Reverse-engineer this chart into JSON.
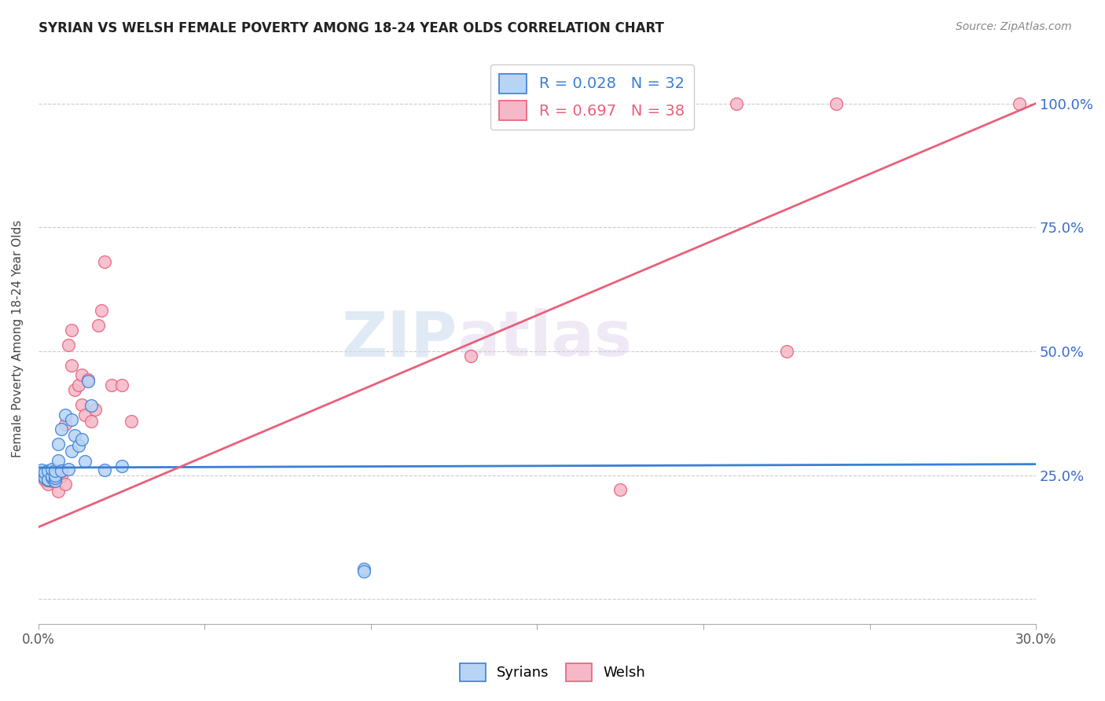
{
  "title": "SYRIAN VS WELSH FEMALE POVERTY AMONG 18-24 YEAR OLDS CORRELATION CHART",
  "source": "Source: ZipAtlas.com",
  "ylabel": "Female Poverty Among 18-24 Year Olds",
  "y_ticks": [
    0.0,
    0.25,
    0.5,
    0.75,
    1.0
  ],
  "y_tick_labels": [
    "",
    "25.0%",
    "50.0%",
    "75.0%",
    "100.0%"
  ],
  "x_range": [
    0.0,
    0.3
  ],
  "y_range": [
    -0.05,
    1.1
  ],
  "legend_r1": "R = 0.028   N = 32",
  "legend_r2": "R = 0.697   N = 38",
  "syrian_color": "#b8d4f5",
  "welsh_color": "#f5b8c8",
  "syrian_line_color": "#3a7fd5",
  "welsh_line_color": "#e8607a",
  "watermark_1": "ZIP",
  "watermark_2": "atlas",
  "syrian_line_x0": 0.0,
  "syrian_line_x1": 0.3,
  "syrian_line_y0": 0.265,
  "syrian_line_y1": 0.272,
  "welsh_line_x0": 0.0,
  "welsh_line_x1": 0.3,
  "welsh_line_y0": 0.145,
  "welsh_line_y1": 1.0,
  "syrians_x": [
    0.001,
    0.001,
    0.002,
    0.002,
    0.003,
    0.003,
    0.003,
    0.004,
    0.004,
    0.004,
    0.005,
    0.005,
    0.005,
    0.005,
    0.006,
    0.006,
    0.007,
    0.007,
    0.008,
    0.009,
    0.01,
    0.01,
    0.011,
    0.012,
    0.013,
    0.014,
    0.015,
    0.016,
    0.02,
    0.025,
    0.098,
    0.098
  ],
  "syrians_y": [
    0.25,
    0.26,
    0.245,
    0.255,
    0.24,
    0.242,
    0.258,
    0.245,
    0.248,
    0.262,
    0.238,
    0.245,
    0.25,
    0.258,
    0.28,
    0.312,
    0.258,
    0.342,
    0.372,
    0.262,
    0.298,
    0.362,
    0.33,
    0.31,
    0.322,
    0.278,
    0.44,
    0.39,
    0.26,
    0.268,
    0.06,
    0.055
  ],
  "welsh_x": [
    0.001,
    0.002,
    0.003,
    0.003,
    0.004,
    0.005,
    0.006,
    0.006,
    0.007,
    0.007,
    0.008,
    0.008,
    0.009,
    0.01,
    0.01,
    0.011,
    0.012,
    0.013,
    0.013,
    0.014,
    0.015,
    0.016,
    0.017,
    0.018,
    0.019,
    0.02,
    0.022,
    0.025,
    0.028,
    0.13,
    0.145,
    0.16,
    0.175,
    0.19,
    0.21,
    0.225,
    0.24,
    0.295
  ],
  "welsh_y": [
    0.25,
    0.24,
    0.248,
    0.232,
    0.238,
    0.242,
    0.252,
    0.218,
    0.248,
    0.258,
    0.232,
    0.352,
    0.512,
    0.472,
    0.542,
    0.422,
    0.432,
    0.392,
    0.452,
    0.372,
    0.442,
    0.358,
    0.382,
    0.552,
    0.582,
    0.68,
    0.432,
    0.432,
    0.358,
    0.49,
    1.0,
    1.0,
    0.22,
    1.0,
    1.0,
    0.5,
    1.0,
    1.0
  ]
}
